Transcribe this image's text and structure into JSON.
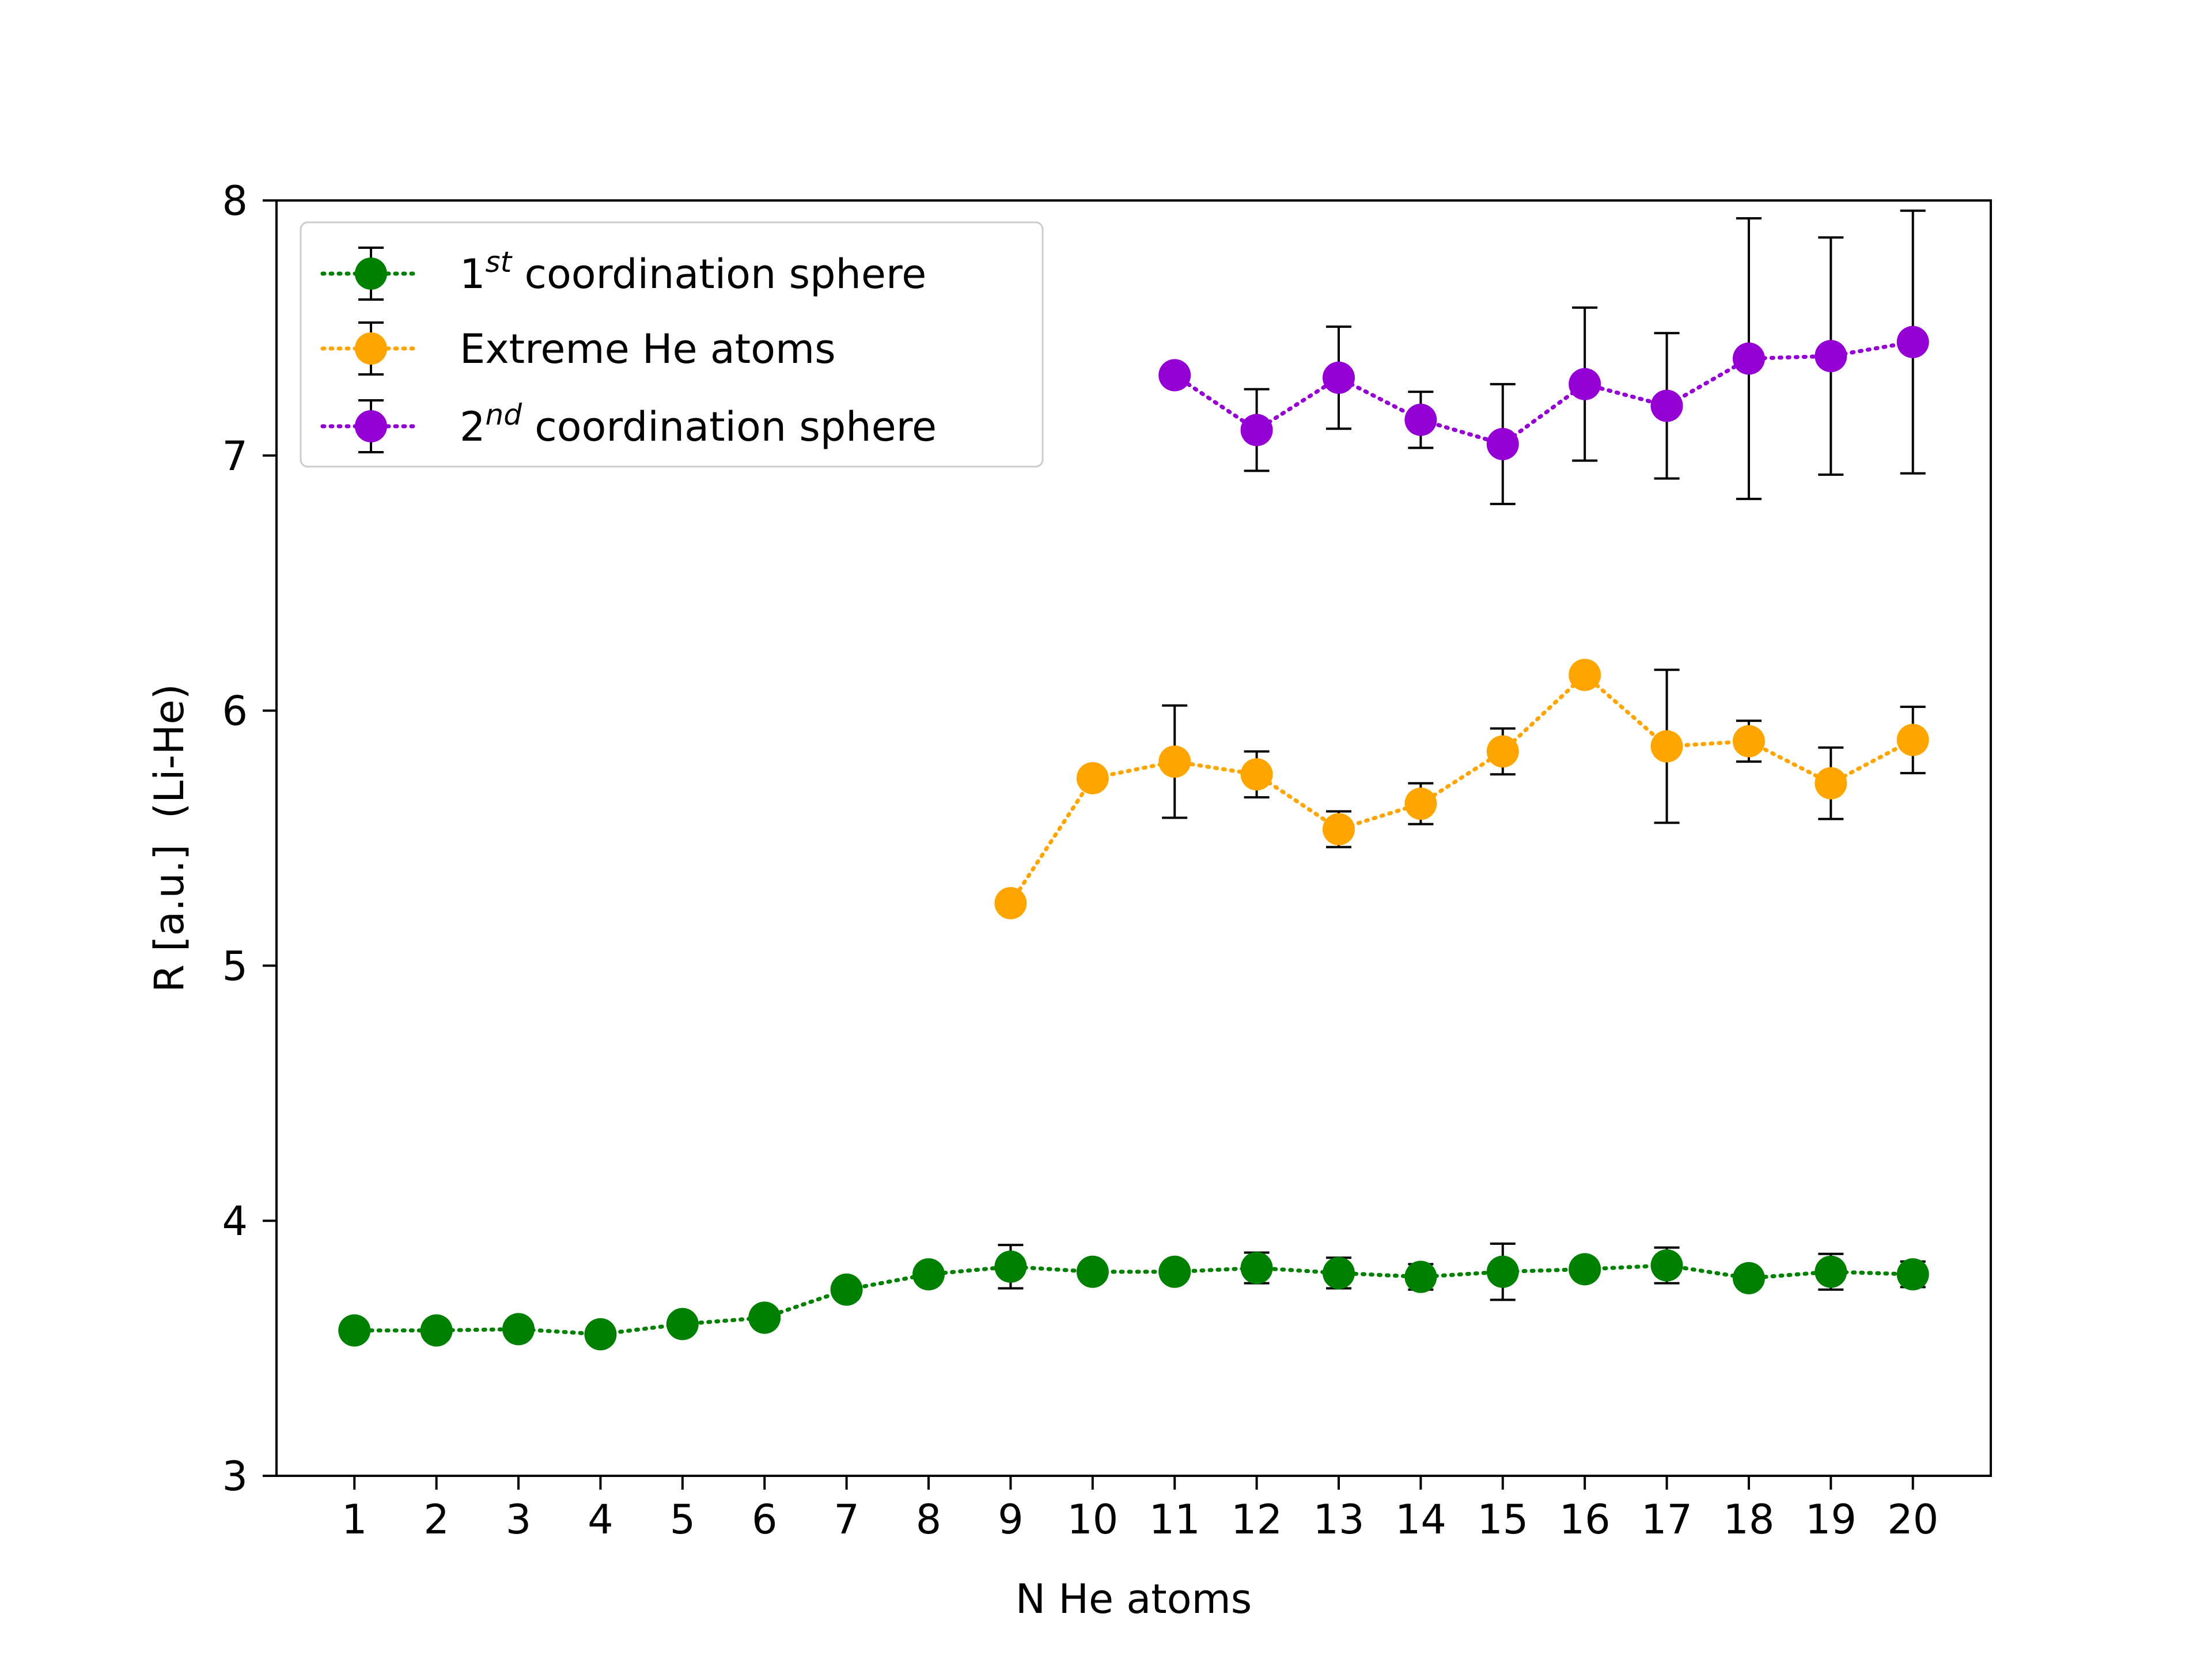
{
  "chart_data": {
    "type": "scatter",
    "xlabel": "N He atoms",
    "ylabel": "R [a.u.]  (Li-He)",
    "xlim": [
      0.05,
      20.95
    ],
    "ylim": [
      3,
      8
    ],
    "xticks": [
      1,
      2,
      3,
      4,
      5,
      6,
      7,
      8,
      9,
      10,
      11,
      12,
      13,
      14,
      15,
      16,
      17,
      18,
      19,
      20
    ],
    "yticks": [
      3,
      4,
      5,
      6,
      7,
      8
    ],
    "grid": false,
    "legend_position": "upper-left",
    "series": [
      {
        "name_base": "1",
        "name_sup": "st",
        "name_rest": " coordination sphere",
        "color": "#008000",
        "x": [
          1,
          2,
          3,
          4,
          5,
          6,
          7,
          8,
          9,
          10,
          11,
          12,
          13,
          14,
          15,
          16,
          17,
          18,
          19,
          20
        ],
        "y": [
          3.57,
          3.57,
          3.575,
          3.555,
          3.595,
          3.62,
          3.73,
          3.79,
          3.82,
          3.8,
          3.8,
          3.815,
          3.795,
          3.78,
          3.8,
          3.81,
          3.825,
          3.775,
          3.8,
          3.79
        ],
        "err": [
          0,
          0,
          0,
          0,
          0,
          0,
          0,
          0,
          0.085,
          0,
          0,
          0.06,
          0.06,
          0.05,
          0.11,
          0,
          0.07,
          0,
          0.07,
          0.05
        ]
      },
      {
        "name_base": "Extreme He atoms",
        "name_sup": "",
        "name_rest": "",
        "color": "#FFA500",
        "x": [
          9,
          10,
          11,
          12,
          13,
          14,
          15,
          16,
          17,
          18,
          19,
          20
        ],
        "y": [
          5.245,
          5.735,
          5.8,
          5.75,
          5.535,
          5.635,
          5.84,
          6.14,
          5.86,
          5.88,
          5.715,
          5.885
        ],
        "err": [
          0,
          0,
          0.22,
          0.09,
          0.07,
          0.08,
          0.09,
          0,
          0.3,
          0.08,
          0.14,
          0.13
        ]
      },
      {
        "name_base": "2",
        "name_sup": "nd",
        "name_rest": " coordination sphere",
        "color": "#9400D3",
        "x": [
          11,
          12,
          13,
          14,
          15,
          16,
          17,
          18,
          19,
          20
        ],
        "y": [
          7.315,
          7.1,
          7.305,
          7.14,
          7.045,
          7.28,
          7.195,
          7.38,
          7.39,
          7.445
        ],
        "err": [
          0,
          0.16,
          0.2,
          0.11,
          0.235,
          0.3,
          0.285,
          0.55,
          0.465,
          0.515
        ]
      }
    ]
  }
}
